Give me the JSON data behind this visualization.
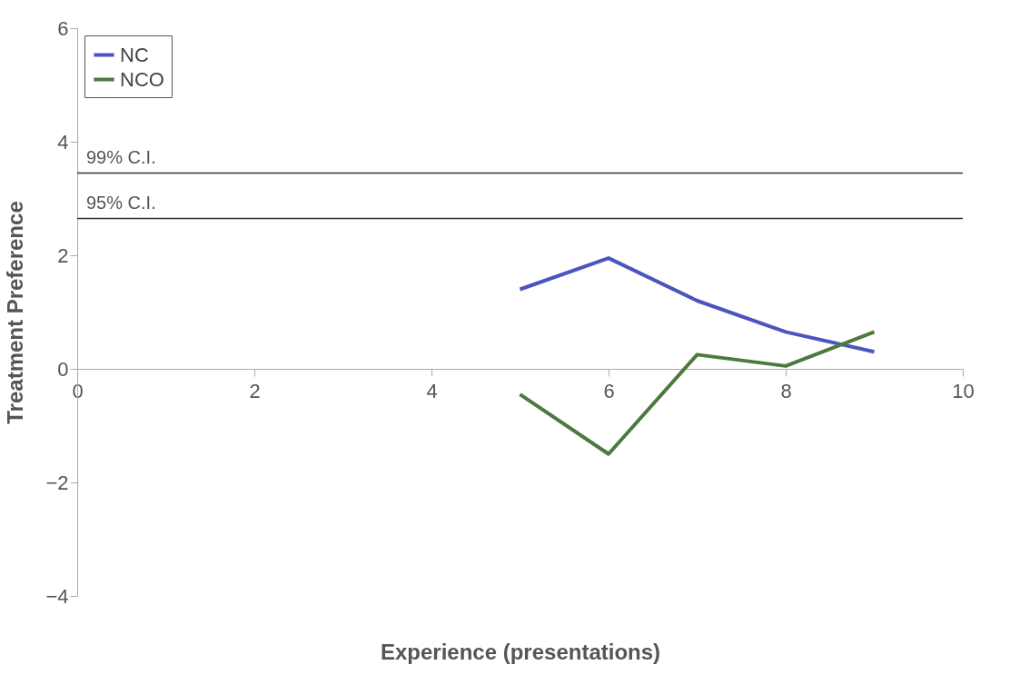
{
  "chart_data": {
    "type": "line",
    "xlabel": "Experience (presentations)",
    "ylabel": "Treatment Preference",
    "xlim": [
      0,
      10
    ],
    "ylim": [
      -4,
      6
    ],
    "xticks": [
      0,
      2,
      4,
      6,
      8,
      10
    ],
    "yticks": [
      -4,
      -2,
      0,
      2,
      4,
      6
    ],
    "grid": false,
    "legend": "top left",
    "marker": "none",
    "line_style": "solid",
    "series": [
      {
        "name": "NC",
        "color": "#4b55c0",
        "x": [
          5,
          6,
          7,
          8,
          9
        ],
        "values": [
          1.4,
          1.95,
          1.2,
          0.65,
          0.3
        ]
      },
      {
        "name": "NCO",
        "color": "#4a7a3e",
        "x": [
          5,
          6,
          7,
          8,
          9
        ],
        "values": [
          -0.45,
          -1.5,
          0.25,
          0.05,
          0.65
        ]
      }
    ],
    "ref_lines": [
      {
        "axis": "y",
        "value": 3.45,
        "label": "99% C.I.",
        "color": "#333333"
      },
      {
        "axis": "y",
        "value": 2.65,
        "label": "95% C.I.",
        "color": "#333333"
      }
    ]
  }
}
